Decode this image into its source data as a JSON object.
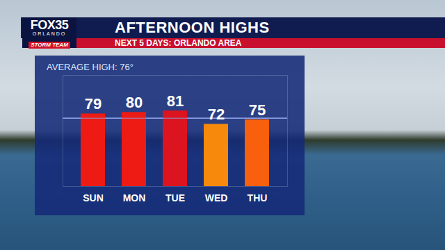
{
  "chart_data": {
    "type": "bar",
    "title": "AFTERNOON HIGHS",
    "subtitle": "NEXT 5 DAYS: ORLANDO AREA",
    "logo": [
      "FOX35",
      "ORLANDO",
      "STORM TEAM"
    ],
    "categories": [
      "SUN",
      "MON",
      "TUE",
      "WED",
      "THU"
    ],
    "values": [
      79,
      80,
      81,
      72,
      75
    ],
    "colors": [
      "#ee1b14",
      "#ee1b14",
      "#dc1420",
      "#f78a0c",
      "#f9600e"
    ],
    "ylim": [
      30,
      105
    ],
    "tick_labels": "x",
    "data_labels": true,
    "grid": false,
    "annotations": [
      {
        "text": "AVERAGE HIGH: 76°",
        "value": 76
      }
    ]
  }
}
